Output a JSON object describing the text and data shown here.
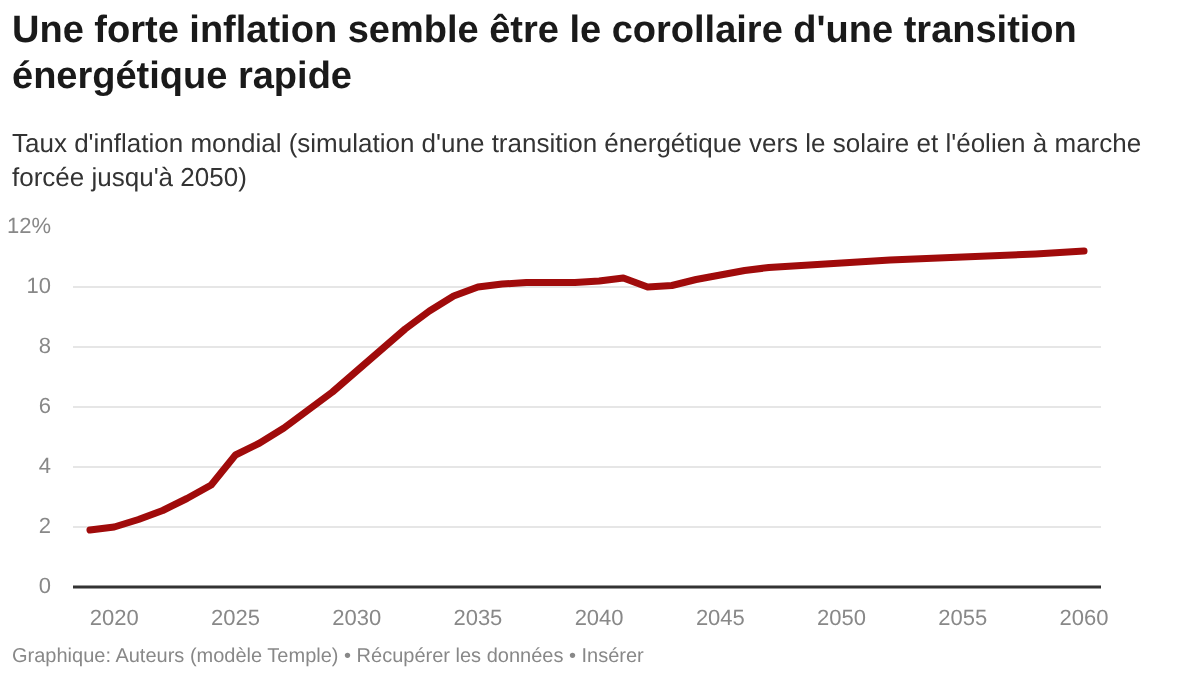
{
  "chart_data": {
    "type": "line",
    "title": "Une forte inflation semble être le corollaire d'une transition énergétique rapide",
    "subtitle": "Taux d'inflation mondial (simulation d'une transition énergétique vers le solaire et l'éolien à marche forcée jusqu'à 2050)",
    "annotations": [
      "Graphique: Auteurs (modèle Temple) • Récupérer les données • Insérer"
    ],
    "x": [
      2019,
      2020,
      2021,
      2022,
      2023,
      2024,
      2025,
      2026,
      2027,
      2028,
      2029,
      2030,
      2031,
      2032,
      2033,
      2034,
      2035,
      2036,
      2037,
      2038,
      2039,
      2040,
      2041,
      2042,
      2043,
      2044,
      2045,
      2046,
      2047,
      2048,
      2049,
      2050,
      2052,
      2055,
      2058,
      2060
    ],
    "series": [
      {
        "color": "#a00b0b",
        "values": [
          1.9,
          2.0,
          2.25,
          2.55,
          2.95,
          3.4,
          4.4,
          4.8,
          5.3,
          5.9,
          6.5,
          7.2,
          7.9,
          8.6,
          9.2,
          9.7,
          10.0,
          10.1,
          10.15,
          10.15,
          10.15,
          10.2,
          10.3,
          10.0,
          10.05,
          10.25,
          10.4,
          10.55,
          10.65,
          10.7,
          10.75,
          10.8,
          10.9,
          11.0,
          11.1,
          11.2
        ]
      }
    ],
    "xlim": [
      2018.3,
      2060.7
    ],
    "xticks": [
      2020,
      2025,
      2030,
      2035,
      2040,
      2045,
      2050,
      2055,
      2060
    ],
    "ylim": [
      0,
      12
    ],
    "yticks": [
      0,
      2,
      4,
      6,
      8,
      10,
      {
        "value": 12,
        "label": "12%"
      }
    ],
    "grid": "y",
    "marker": "none",
    "line_style": "solid"
  }
}
